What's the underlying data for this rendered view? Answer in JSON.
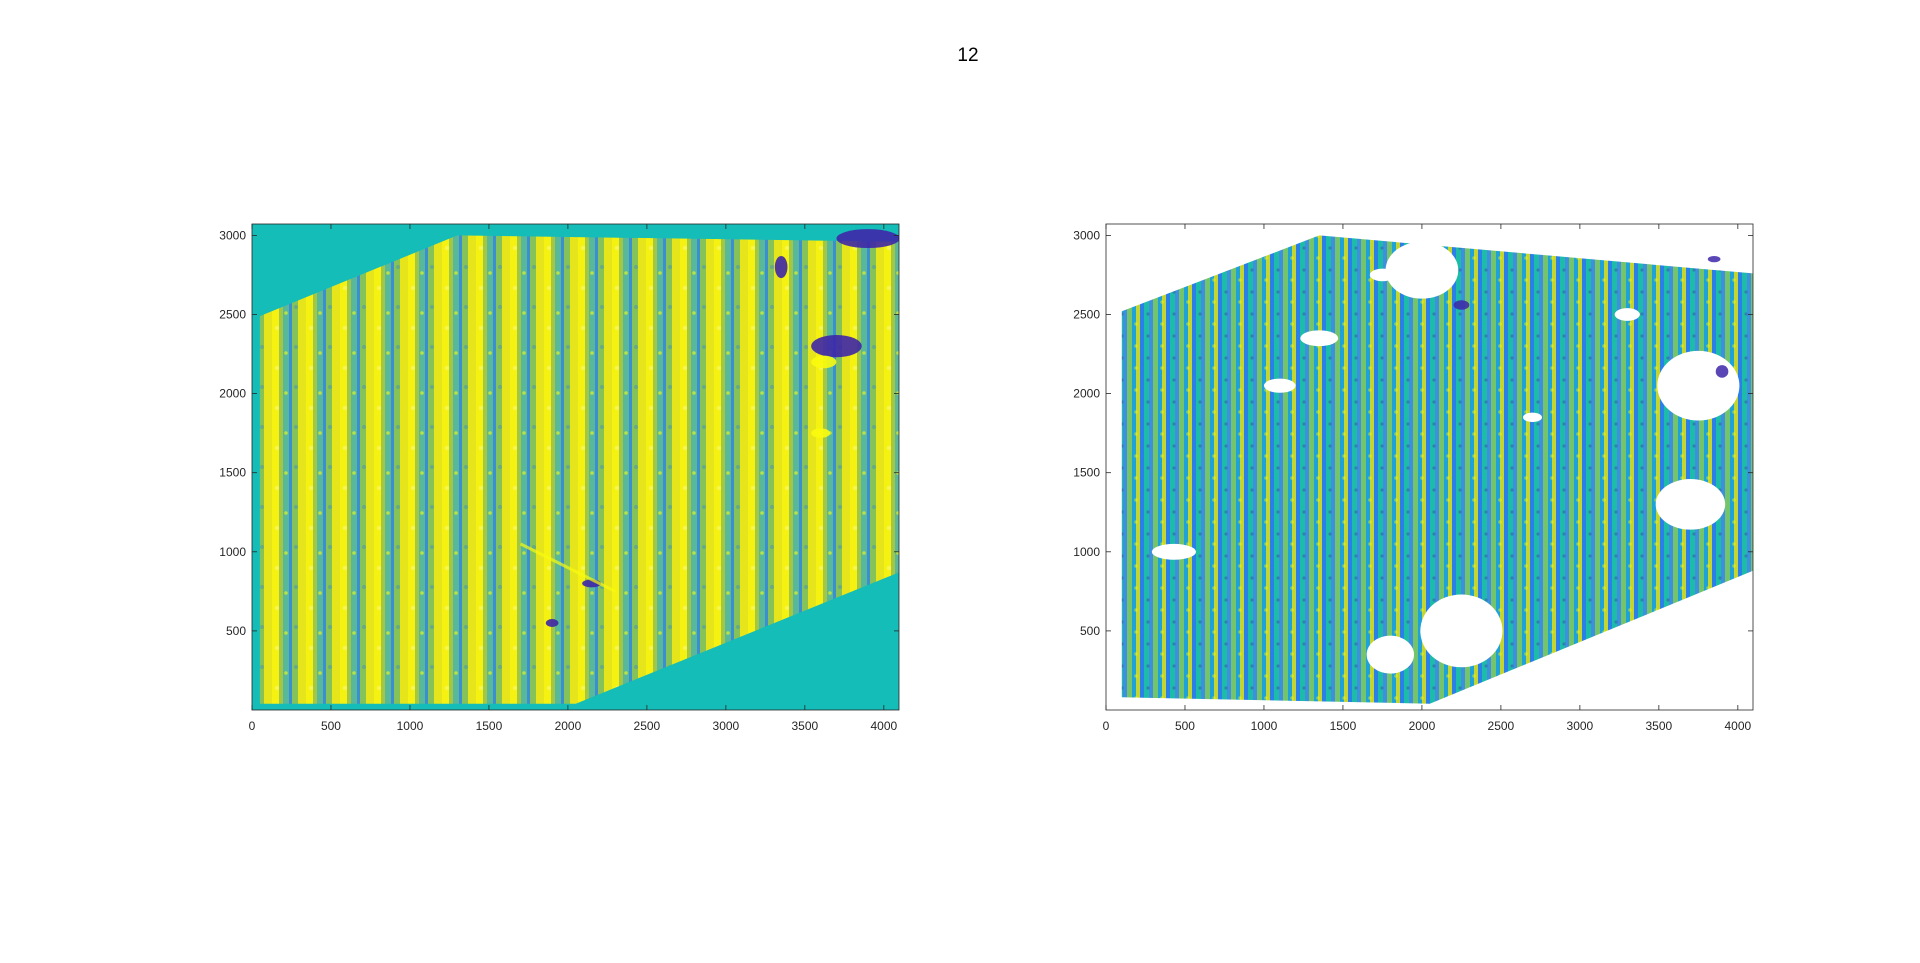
{
  "figure": {
    "title": "12"
  },
  "colors": {
    "background": "#ffffff",
    "axis": "#262626",
    "fill": "#14bdb7",
    "cmap_low": "#3e26a8",
    "cmap_mid_low": "#1f96dc",
    "cmap_mid": "#14bdb7",
    "cmap_mid_high": "#a0c83a",
    "cmap_high": "#f9fb0e"
  },
  "chart_data": [
    {
      "type": "heatmap",
      "name": "left-panel",
      "title": "",
      "xlabel": "",
      "ylabel": "",
      "xlim": [
        0,
        4096
      ],
      "ylim": [
        0,
        3072
      ],
      "xticks": [
        0,
        500,
        1000,
        1500,
        2000,
        2500,
        3000,
        3500,
        4000
      ],
      "yticks": [
        500,
        1000,
        1500,
        2000,
        2500,
        3000
      ],
      "xtick_labels": [
        "0",
        "500",
        "1000",
        "1500",
        "2000",
        "2500",
        "3000",
        "3500",
        "4000"
      ],
      "ytick_labels": [
        "500",
        "1000",
        "1500",
        "2000",
        "2500",
        "3000"
      ],
      "colormap": "parula",
      "outside_region": "filled",
      "valid_region": [
        [
          50,
          2490
        ],
        [
          1300,
          3000
        ],
        [
          4096,
          2960
        ],
        [
          4096,
          870
        ],
        [
          2050,
          40
        ],
        [
          50,
          40
        ]
      ],
      "grid": false,
      "box": true
    },
    {
      "type": "heatmap",
      "name": "right-panel",
      "title": "",
      "xlabel": "",
      "ylabel": "",
      "xlim": [
        0,
        4096
      ],
      "ylim": [
        0,
        3072
      ],
      "xticks": [
        0,
        500,
        1000,
        1500,
        2000,
        2500,
        3000,
        3500,
        4000
      ],
      "yticks": [
        500,
        1000,
        1500,
        2000,
        2500,
        3000
      ],
      "xtick_labels": [
        "0",
        "500",
        "1000",
        "1500",
        "2000",
        "2500",
        "3000",
        "3500",
        "4000"
      ],
      "ytick_labels": [
        "500",
        "1000",
        "1500",
        "2000",
        "2500",
        "3000"
      ],
      "colormap": "parula",
      "outside_region": "blank",
      "valid_region": [
        [
          100,
          2520
        ],
        [
          1350,
          3000
        ],
        [
          4096,
          2760
        ],
        [
          4096,
          880
        ],
        [
          2050,
          40
        ],
        [
          100,
          80
        ]
      ],
      "grid": false,
      "box": true
    }
  ]
}
